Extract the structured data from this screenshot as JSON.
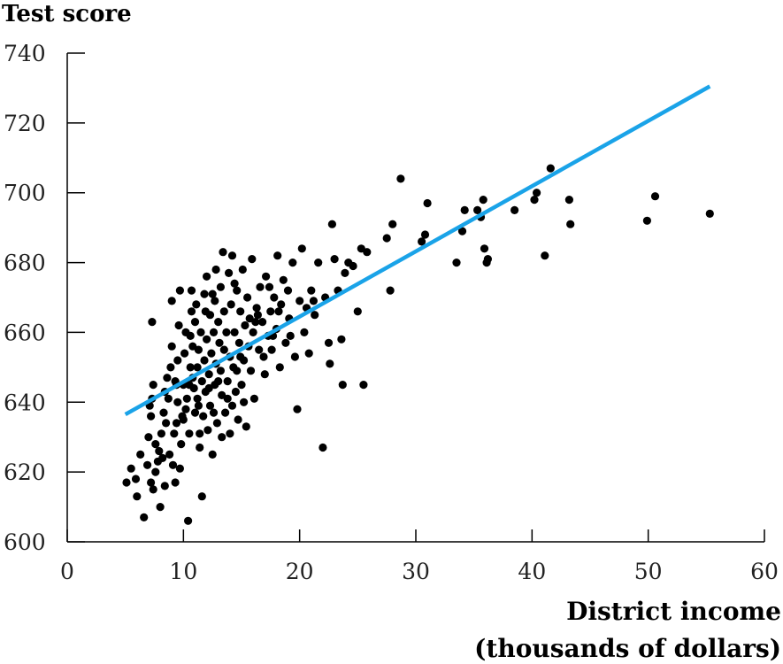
{
  "chart_data": {
    "type": "scatter",
    "title": "",
    "ylabel": "Test score",
    "xlabel_lines": [
      "District income",
      "(thousands of dollars)"
    ],
    "xlim": [
      0,
      60
    ],
    "ylim": [
      600,
      740
    ],
    "xticks": [
      0,
      10,
      20,
      30,
      40,
      50,
      60
    ],
    "yticks": [
      600,
      620,
      640,
      660,
      680,
      700,
      720,
      740
    ],
    "xtick_labels": [
      "0",
      "10",
      "20",
      "30",
      "40",
      "50",
      "60"
    ],
    "ytick_labels": [
      "600",
      "620",
      "640",
      "660",
      "680",
      "700",
      "720",
      "740"
    ],
    "grid": false,
    "colors": {
      "points": "#000000",
      "fit_line": "#1aa3e8"
    },
    "fit_line": {
      "x": [
        5,
        55.3
      ],
      "y": [
        636.5,
        730.5
      ]
    },
    "points": [
      [
        5.1,
        617
      ],
      [
        5.5,
        621
      ],
      [
        5.9,
        618
      ],
      [
        6.3,
        625
      ],
      [
        6.6,
        607
      ],
      [
        6.9,
        622
      ],
      [
        7.0,
        630
      ],
      [
        7.2,
        636
      ],
      [
        7.3,
        641
      ],
      [
        7.4,
        645
      ],
      [
        7.2,
        617
      ],
      [
        7.4,
        615
      ],
      [
        7.6,
        620
      ],
      [
        7.8,
        623
      ],
      [
        7.3,
        663
      ],
      [
        7.6,
        628
      ],
      [
        7.9,
        626
      ],
      [
        8.0,
        610
      ],
      [
        8.2,
        624
      ],
      [
        8.4,
        616
      ],
      [
        8.3,
        637
      ],
      [
        8.4,
        643
      ],
      [
        8.5,
        634
      ],
      [
        8.7,
        641
      ],
      [
        8.8,
        625
      ],
      [
        8.9,
        650
      ],
      [
        9.0,
        656
      ],
      [
        9.1,
        622
      ],
      [
        9.2,
        631
      ],
      [
        9.3,
        646
      ],
      [
        9.0,
        669
      ],
      [
        9.3,
        617
      ],
      [
        9.4,
        634
      ],
      [
        9.5,
        640
      ],
      [
        9.5,
        652
      ],
      [
        9.6,
        662
      ],
      [
        9.7,
        621
      ],
      [
        9.8,
        628
      ],
      [
        9.9,
        636
      ],
      [
        10.0,
        645
      ],
      [
        9.7,
        672
      ],
      [
        10.1,
        654
      ],
      [
        10.2,
        660
      ],
      [
        10.2,
        638
      ],
      [
        10.3,
        641
      ],
      [
        10.4,
        606
      ],
      [
        10.5,
        631
      ],
      [
        10.5,
        645
      ],
      [
        10.6,
        650
      ],
      [
        10.7,
        666
      ],
      [
        10.7,
        672
      ],
      [
        10.8,
        656
      ],
      [
        10.9,
        644
      ],
      [
        11.0,
        637
      ],
      [
        11.0,
        663
      ],
      [
        11.1,
        668
      ],
      [
        11.2,
        650
      ],
      [
        11.2,
        641
      ],
      [
        11.3,
        655
      ],
      [
        11.4,
        631
      ],
      [
        11.4,
        627
      ],
      [
        11.5,
        660
      ],
      [
        11.6,
        613
      ],
      [
        11.6,
        646
      ],
      [
        11.7,
        636
      ],
      [
        11.8,
        671
      ],
      [
        11.8,
        652
      ],
      [
        11.9,
        643
      ],
      [
        12.0,
        676
      ],
      [
        12.0,
        658
      ],
      [
        12.1,
        632
      ],
      [
        12.2,
        648
      ],
      [
        12.3,
        665
      ],
      [
        12.3,
        639
      ],
      [
        12.4,
        654
      ],
      [
        12.5,
        625
      ],
      [
        12.5,
        671
      ],
      [
        12.6,
        660
      ],
      [
        12.7,
        645
      ],
      [
        12.8,
        651
      ],
      [
        12.8,
        678
      ],
      [
        12.9,
        634
      ],
      [
        13.0,
        663
      ],
      [
        13.1,
        657
      ],
      [
        13.2,
        649
      ],
      [
        13.2,
        673
      ],
      [
        13.3,
        642
      ],
      [
        13.4,
        683
      ],
      [
        13.5,
        655
      ],
      [
        13.5,
        666
      ],
      [
        13.6,
        637
      ],
      [
        13.7,
        660
      ],
      [
        13.8,
        646
      ],
      [
        13.9,
        677
      ],
      [
        14.0,
        653
      ],
      [
        14.0,
        631
      ],
      [
        14.1,
        668
      ],
      [
        14.2,
        682
      ],
      [
        14.3,
        650
      ],
      [
        14.4,
        660
      ],
      [
        14.5,
        643
      ],
      [
        14.6,
        672
      ],
      [
        14.7,
        635
      ],
      [
        14.8,
        657
      ],
      [
        14.9,
        666
      ],
      [
        15.0,
        645
      ],
      [
        15.1,
        678
      ],
      [
        15.2,
        652
      ],
      [
        15.3,
        662
      ],
      [
        15.4,
        633
      ],
      [
        15.5,
        670
      ],
      [
        15.6,
        656
      ],
      [
        15.8,
        649
      ],
      [
        15.9,
        681
      ],
      [
        16.0,
        660
      ],
      [
        16.1,
        641
      ],
      [
        16.3,
        667
      ],
      [
        16.5,
        655
      ],
      [
        16.6,
        673
      ],
      [
        16.8,
        663
      ],
      [
        17.0,
        648
      ],
      [
        17.1,
        676
      ],
      [
        17.3,
        659
      ],
      [
        17.5,
        666
      ],
      [
        17.6,
        655
      ],
      [
        17.8,
        670
      ],
      [
        18.0,
        661
      ],
      [
        18.1,
        682
      ],
      [
        18.3,
        650
      ],
      [
        18.4,
        668
      ],
      [
        18.6,
        675
      ],
      [
        18.8,
        657
      ],
      [
        19.0,
        672
      ],
      [
        19.1,
        664
      ],
      [
        19.4,
        680
      ],
      [
        19.6,
        653
      ],
      [
        19.8,
        638
      ],
      [
        20.0,
        669
      ],
      [
        20.2,
        684
      ],
      [
        20.4,
        660
      ],
      [
        20.6,
        667
      ],
      [
        20.8,
        654
      ],
      [
        21.0,
        672
      ],
      [
        21.3,
        665
      ],
      [
        21.6,
        680
      ],
      [
        22.0,
        627
      ],
      [
        22.2,
        670
      ],
      [
        22.5,
        657
      ],
      [
        22.6,
        651
      ],
      [
        22.8,
        691
      ],
      [
        23.0,
        681
      ],
      [
        23.3,
        672
      ],
      [
        23.6,
        658
      ],
      [
        23.7,
        645
      ],
      [
        23.9,
        677
      ],
      [
        24.2,
        680
      ],
      [
        24.6,
        679
      ],
      [
        25.0,
        666
      ],
      [
        25.3,
        684
      ],
      [
        25.5,
        645
      ],
      [
        25.8,
        683
      ],
      [
        27.5,
        687
      ],
      [
        27.8,
        672
      ],
      [
        28.0,
        691
      ],
      [
        28.7,
        704
      ],
      [
        30.5,
        686
      ],
      [
        30.8,
        688
      ],
      [
        31.0,
        697
      ],
      [
        33.5,
        680
      ],
      [
        34.0,
        689
      ],
      [
        34.2,
        695
      ],
      [
        35.3,
        695
      ],
      [
        35.6,
        693
      ],
      [
        35.8,
        698
      ],
      [
        35.9,
        684
      ],
      [
        36.1,
        680
      ],
      [
        36.2,
        681
      ],
      [
        38.5,
        695
      ],
      [
        40.2,
        698
      ],
      [
        40.4,
        700
      ],
      [
        41.1,
        682
      ],
      [
        41.6,
        707
      ],
      [
        43.2,
        698
      ],
      [
        43.3,
        691
      ],
      [
        49.9,
        692
      ],
      [
        50.6,
        699
      ],
      [
        55.3,
        694
      ],
      [
        6.0,
        613
      ],
      [
        7.1,
        639
      ],
      [
        8.1,
        631
      ],
      [
        8.6,
        647
      ],
      [
        9.4,
        645
      ],
      [
        10.0,
        635
      ],
      [
        10.8,
        647
      ],
      [
        11.3,
        639
      ],
      [
        12.6,
        637
      ],
      [
        13.3,
        630
      ],
      [
        13.8,
        641
      ],
      [
        14.6,
        649
      ],
      [
        15.2,
        640
      ],
      [
        15.7,
        664
      ],
      [
        16.2,
        663
      ],
      [
        16.9,
        653
      ],
      [
        17.4,
        673
      ],
      [
        18.2,
        666
      ],
      [
        19.2,
        659
      ],
      [
        21.2,
        669
      ],
      [
        12.2,
        644
      ],
      [
        13.0,
        646
      ],
      [
        14.2,
        639
      ],
      [
        14.9,
        653
      ],
      [
        10.6,
        659
      ],
      [
        11.9,
        666
      ],
      [
        12.7,
        669
      ],
      [
        14.4,
        674
      ],
      [
        16.4,
        665
      ],
      [
        17.7,
        659
      ]
    ]
  }
}
